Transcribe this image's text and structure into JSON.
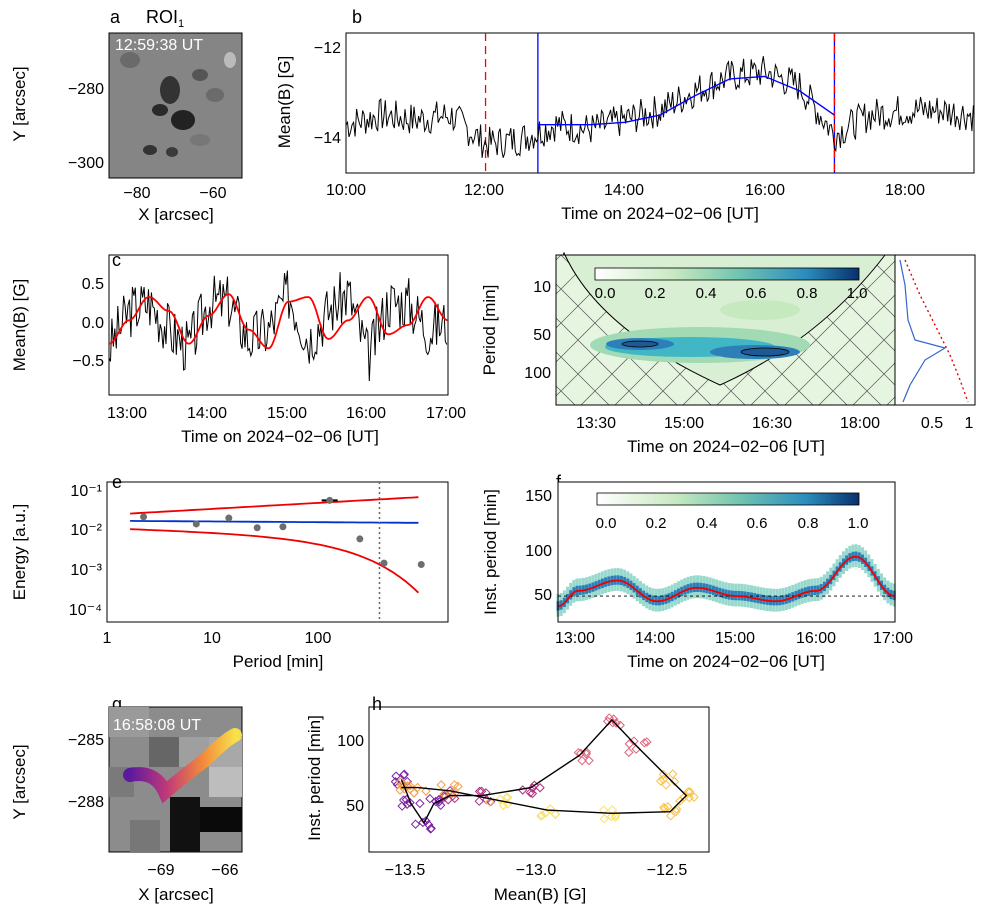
{
  "panel_labels": {
    "a": "a",
    "b": "b",
    "c": "c",
    "d": "d",
    "e": "e",
    "f": "f",
    "g": "g",
    "h": "h"
  },
  "panel_a": {
    "roi": "ROI",
    "roi_sub": "1",
    "time": "12:59:38 UT",
    "xlabel": "X [arcsec]",
    "ylabel": "Y [arcsec]",
    "xticks": [
      "−80",
      "−60"
    ],
    "yticks": [
      "−280",
      "−300"
    ]
  },
  "panel_g": {
    "time": "16:58:08 UT",
    "xlabel": "X [arcsec]",
    "ylabel": "Y [arcsec]",
    "xticks": [
      "−69",
      "−66"
    ],
    "yticks": [
      "−285",
      "−288"
    ]
  },
  "chart_data": [
    {
      "panel": "b",
      "type": "line",
      "xlabel": "Time on 2024−02−06 [UT]",
      "ylabel": "Mean(B) [G]",
      "xticks": [
        "10:00",
        "12:00",
        "14:00",
        "16:00",
        "18:00"
      ],
      "yticks": [
        "−12",
        "−14"
      ],
      "xlim": [
        "10:00",
        "19:00"
      ],
      "ylim": [
        -14.6,
        -11.7
      ],
      "vertical_lines": [
        {
          "x": "12:00",
          "color": "#ff0000",
          "style": "dashed"
        },
        {
          "x": "12:45",
          "color": "#0000ff",
          "style": "solid"
        },
        {
          "x": "17:00",
          "color": "#0000ff",
          "style": "solid"
        },
        {
          "x": "17:00",
          "color": "#ff0000",
          "style": "dashed"
        }
      ],
      "series": [
        {
          "color": "#000000",
          "x": [
            "10:00",
            "10:30",
            "11:00",
            "11:30",
            "12:00",
            "12:30",
            "13:00",
            "13:30",
            "14:00",
            "14:30",
            "15:00",
            "15:30",
            "16:00",
            "16:30",
            "17:00",
            "17:30",
            "18:00",
            "18:30",
            "19:00"
          ],
          "values": [
            -13.6,
            -13.4,
            -13.5,
            -13.4,
            -14.0,
            -13.9,
            -13.6,
            -13.7,
            -13.5,
            -13.3,
            -12.9,
            -12.6,
            -12.5,
            -12.8,
            -13.8,
            -13.4,
            -13.3,
            -13.3,
            -13.4
          ]
        },
        {
          "color": "#0000ff",
          "x": [
            "12:45",
            "13:30",
            "14:00",
            "14:30",
            "15:00",
            "15:30",
            "16:00",
            "16:30",
            "17:00"
          ],
          "values": [
            -13.6,
            -13.6,
            -13.55,
            -13.4,
            -13.0,
            -12.65,
            -12.6,
            -12.9,
            -13.4
          ]
        }
      ]
    },
    {
      "panel": "c",
      "type": "line",
      "xlabel": "Time on 2024−02−06 [UT]",
      "ylabel": "Mean(B) [G]",
      "xticks": [
        "13:00",
        "14:00",
        "15:00",
        "16:00",
        "17:00"
      ],
      "yticks": [
        "0.5",
        "0.0",
        "−0.5"
      ],
      "xlim": [
        "12:45",
        "17:00"
      ],
      "ylim": [
        -0.8,
        0.7
      ],
      "series": [
        {
          "color": "#000000",
          "x": [
            "12:45",
            "13:00",
            "13:15",
            "13:30",
            "13:45",
            "14:00",
            "14:15",
            "14:30",
            "14:45",
            "15:00",
            "15:15",
            "15:30",
            "15:45",
            "16:00",
            "16:15",
            "16:30",
            "16:45",
            "17:00"
          ],
          "values": [
            -0.3,
            0.1,
            0.2,
            -0.1,
            -0.3,
            0.2,
            0.2,
            -0.2,
            -0.1,
            0.3,
            -0.2,
            0.1,
            0.3,
            -0.4,
            0.2,
            0.2,
            -0.1,
            0.0
          ]
        },
        {
          "color": "#ff0000",
          "x": [
            "12:45",
            "13:00",
            "13:15",
            "13:30",
            "13:45",
            "14:00",
            "14:15",
            "14:30",
            "14:45",
            "15:00",
            "15:15",
            "15:30",
            "15:45",
            "16:00",
            "16:15",
            "16:30",
            "16:45",
            "17:00"
          ],
          "values": [
            -0.25,
            0.0,
            0.25,
            0.1,
            -0.25,
            0.05,
            0.28,
            -0.1,
            -0.3,
            0.2,
            0.25,
            -0.2,
            0.0,
            0.25,
            -0.15,
            -0.05,
            0.25,
            0.0
          ]
        }
      ]
    },
    {
      "panel": "d",
      "type": "heatmap",
      "xlabel": "Time on 2024−02−06 [UT]",
      "ylabel": "Period [min]",
      "xticks": [
        "13:30",
        "15:00",
        "16:30",
        "18:00"
      ],
      "yticks": [
        "10",
        "50",
        "100"
      ],
      "colorbar_ticks": [
        "0.0",
        "0.2",
        "0.4",
        "0.6",
        "0.8",
        "1.0"
      ],
      "side_xticks": [
        "0.5",
        "1"
      ]
    },
    {
      "panel": "e",
      "type": "scatter",
      "xlabel": "Period [min]",
      "ylabel": "Energy [a.u.]",
      "xticks": [
        "1",
        "10",
        "100"
      ],
      "yticks": [
        "10⁻¹",
        "10⁻²",
        "10⁻³",
        "10⁻⁴"
      ],
      "x": [
        1.9,
        4.8,
        8.5,
        14,
        22,
        50,
        85,
        130,
        250
      ],
      "values": [
        0.016,
        0.011,
        0.015,
        0.009,
        0.0095,
        0.038,
        0.005,
        0.0014,
        0.0013
      ],
      "vertical_line_x": 120
    },
    {
      "panel": "f",
      "type": "heatmap",
      "xlabel": "Time on 2024−02−06 [UT]",
      "ylabel": "Inst. period [min]",
      "xticks": [
        "13:00",
        "14:00",
        "15:00",
        "16:00",
        "17:00"
      ],
      "yticks": [
        "150",
        "100",
        "50"
      ],
      "colorbar_ticks": [
        "0.0",
        "0.2",
        "0.4",
        "0.6",
        "0.8",
        "1.0"
      ],
      "series": [
        {
          "color": "#ff0000",
          "x": [
            "12:45",
            "13:00",
            "13:30",
            "14:00",
            "14:30",
            "15:00",
            "15:30",
            "16:00",
            "16:30",
            "17:00"
          ],
          "values": [
            40,
            55,
            65,
            45,
            58,
            50,
            45,
            55,
            88,
            50
          ]
        }
      ]
    },
    {
      "panel": "h",
      "type": "scatter",
      "xlabel": "Mean(B) [G]",
      "ylabel": "Inst. period [min]",
      "xticks": [
        "−13.5",
        "−13.0",
        "−12.5"
      ],
      "yticks": [
        "100",
        "50"
      ],
      "xlim": [
        -13.55,
        -12.5
      ],
      "ylim": [
        20,
        110
      ]
    }
  ]
}
